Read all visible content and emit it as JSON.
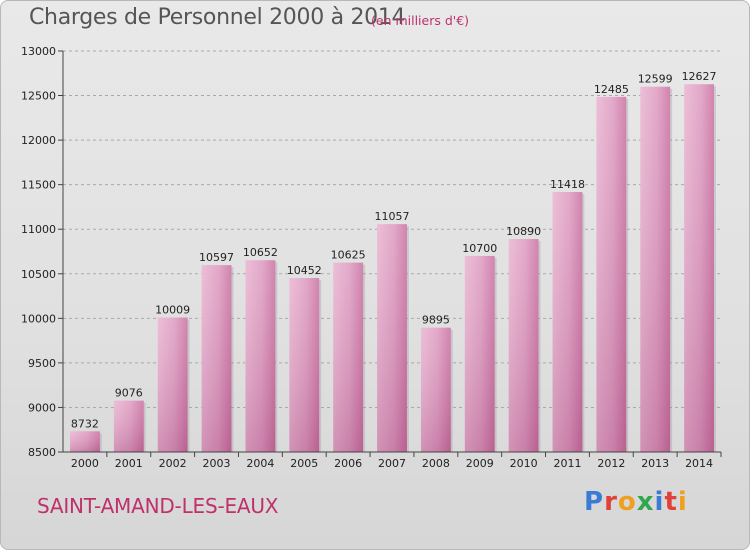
{
  "header": {
    "title": "Charges de Personnel 2000 à 2014",
    "subtitle": "(en milliers d'€)"
  },
  "footer": {
    "city": "SAINT-AMAND-LES-EAUX",
    "logo": "Proxiti"
  },
  "colors": {
    "bar": "#cf7aa8",
    "bar_light": "#e4a6c8",
    "accent": "#c0306a"
  },
  "chart_data": {
    "type": "bar",
    "title": "Charges de Personnel 2000 à 2014",
    "subtitle": "(en milliers d'€)",
    "categories": [
      "2000",
      "2001",
      "2002",
      "2003",
      "2004",
      "2005",
      "2006",
      "2007",
      "2008",
      "2009",
      "2010",
      "2011",
      "2012",
      "2013",
      "2014"
    ],
    "values": [
      8732,
      9076,
      10009,
      10597,
      10652,
      10452,
      10625,
      11057,
      9895,
      10700,
      10890,
      11418,
      12485,
      12599,
      12627
    ],
    "ylim": [
      8500,
      13000
    ],
    "yticks": [
      8500,
      9000,
      9500,
      10000,
      10500,
      11000,
      11500,
      12000,
      12500,
      13000
    ],
    "grid": true
  }
}
